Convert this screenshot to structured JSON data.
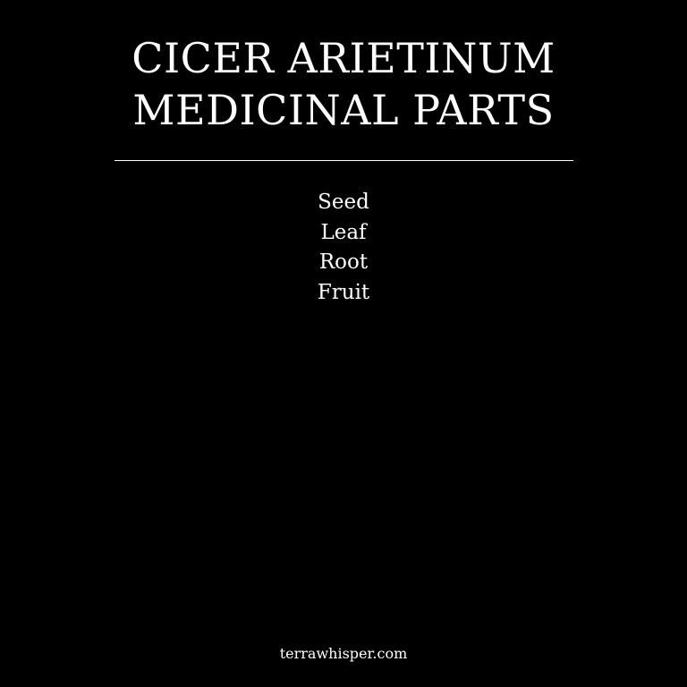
{
  "title": {
    "line1": "CICER ARIETINUM",
    "line2": "MEDICINAL PARTS"
  },
  "parts": [
    "Seed",
    "Leaf",
    "Root",
    "Fruit"
  ],
  "footer": {
    "site": "terrawhisper.com"
  },
  "colors": {
    "background": "#000000",
    "text": "#ffffff"
  }
}
